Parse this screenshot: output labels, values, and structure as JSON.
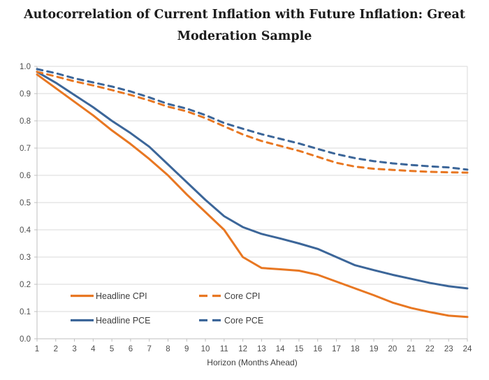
{
  "title_line1": "Autocorrelation of Current Inflation with Future Inflation: Great",
  "title_line2": "Moderation Sample",
  "chart_data": {
    "type": "line",
    "title": "Autocorrelation of Current Inflation with Future Inflation: Great Moderation Sample",
    "xlabel": "Horizon (Months Ahead)",
    "ylabel": "",
    "xlim": [
      1,
      24
    ],
    "ylim": [
      0.0,
      1.0
    ],
    "grid": "horizontal",
    "legend_position": "inside-bottom-left",
    "x_ticks": [
      1,
      2,
      3,
      4,
      5,
      6,
      7,
      8,
      9,
      10,
      11,
      12,
      13,
      14,
      15,
      16,
      17,
      18,
      19,
      20,
      21,
      22,
      23,
      24
    ],
    "y_ticks": [
      "0.0",
      "0.1",
      "0.2",
      "0.3",
      "0.4",
      "0.5",
      "0.6",
      "0.7",
      "0.8",
      "0.9",
      "1.0"
    ],
    "x": [
      1,
      2,
      3,
      4,
      5,
      6,
      7,
      8,
      9,
      10,
      11,
      12,
      13,
      14,
      15,
      16,
      17,
      18,
      19,
      20,
      21,
      22,
      23,
      24
    ],
    "series": [
      {
        "name": "Headline CPI",
        "style": "solid",
        "color": "#E87722",
        "values": [
          0.97,
          0.92,
          0.87,
          0.82,
          0.765,
          0.715,
          0.66,
          0.6,
          0.53,
          0.465,
          0.4,
          0.3,
          0.26,
          0.255,
          0.25,
          0.235,
          0.21,
          0.185,
          0.16,
          0.133,
          0.113,
          0.098,
          0.085,
          0.08
        ]
      },
      {
        "name": "Headline PCE",
        "style": "solid",
        "color": "#3C6699",
        "values": [
          0.98,
          0.94,
          0.895,
          0.85,
          0.8,
          0.755,
          0.705,
          0.64,
          0.575,
          0.51,
          0.45,
          0.41,
          0.385,
          0.368,
          0.35,
          0.33,
          0.3,
          0.27,
          0.252,
          0.235,
          0.22,
          0.205,
          0.193,
          0.185
        ]
      },
      {
        "name": "Core CPI",
        "style": "dashed",
        "color": "#E87722",
        "values": [
          0.98,
          0.963,
          0.945,
          0.93,
          0.913,
          0.895,
          0.875,
          0.852,
          0.835,
          0.81,
          0.78,
          0.75,
          0.726,
          0.708,
          0.69,
          0.668,
          0.646,
          0.632,
          0.624,
          0.62,
          0.616,
          0.613,
          0.611,
          0.61
        ]
      },
      {
        "name": "Core PCE",
        "style": "dashed",
        "color": "#3C6699",
        "values": [
          0.99,
          0.975,
          0.956,
          0.941,
          0.926,
          0.908,
          0.886,
          0.862,
          0.845,
          0.821,
          0.792,
          0.771,
          0.751,
          0.734,
          0.717,
          0.697,
          0.678,
          0.663,
          0.652,
          0.644,
          0.638,
          0.633,
          0.629,
          0.621
        ]
      }
    ],
    "colors": {
      "gridline": "#D9D9D9",
      "axis": "#BFBFBF",
      "tick_label": "#4d4d4d",
      "axis_title": "#3f3f3f",
      "background": "#FFFFFF"
    }
  }
}
